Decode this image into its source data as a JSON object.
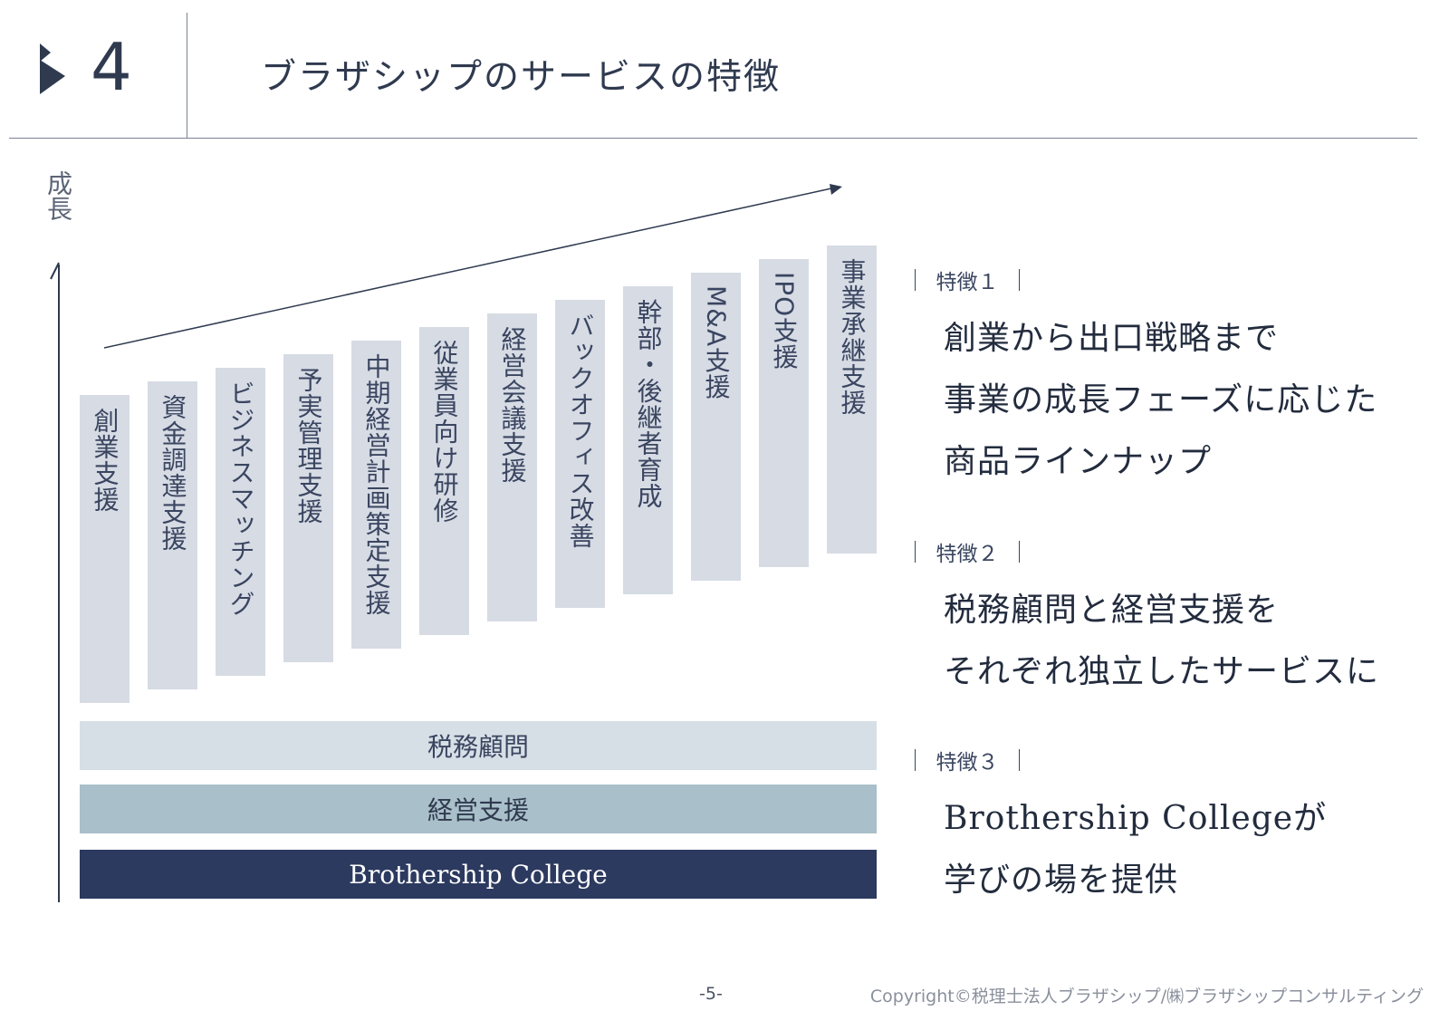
{
  "header": {
    "section_number": "4",
    "title": "ブラザシップのサービスの特徴"
  },
  "diagram": {
    "y_axis_label": "成長",
    "services": [
      "創業支援",
      "資金調達支援",
      "ビジネスマッチング",
      "予実管理支援",
      "中期経営計画策定支援",
      "従業員向け研修",
      "経営会議支援",
      "バックオフィス改善",
      "幹部・後継者育成",
      "M&A支援",
      "IPO支援",
      "事業承継支援"
    ],
    "layers": {
      "tax": "税務顧問",
      "management": "経営支援",
      "college": "Brothership College"
    }
  },
  "features": [
    {
      "tag": "特徴１",
      "lines": [
        "創業から出口戦略まで",
        "事業の成長フェーズに応じた",
        "商品ラインナップ"
      ]
    },
    {
      "tag": "特徴２",
      "lines": [
        "税務顧問と経営支援を",
        "それぞれ独立したサービスに"
      ]
    },
    {
      "tag": "特徴３",
      "lines": [
        "Brothership Collegeが",
        "学びの場を提供"
      ]
    }
  ],
  "footer": {
    "page_number": "-5-",
    "copyright": "Copyright©税理士法人ブラザシップ/㈱ブラザシップコンサルティング"
  },
  "colors": {
    "text_dark": "#2f3a4f",
    "service_bar": "#d6dbe4",
    "layer_tax": "#d7dfe6",
    "layer_management": "#a9bfc9",
    "layer_college": "#2c3a60"
  }
}
